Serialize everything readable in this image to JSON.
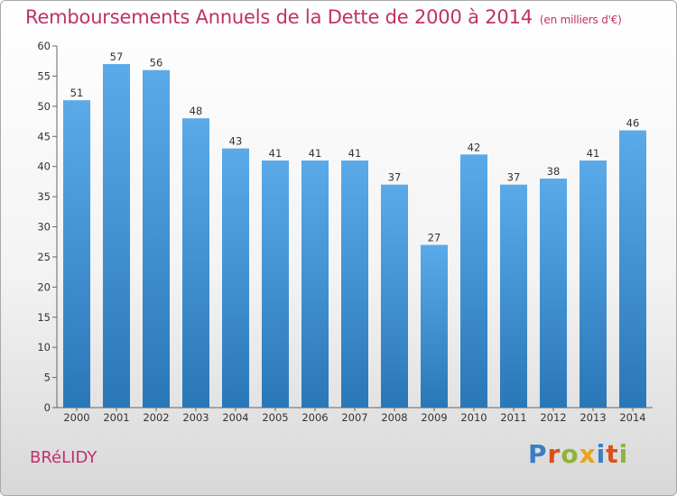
{
  "page": {
    "title": "Remboursements Annuels de la Dette de 2000 à 2014",
    "unit": "(en milliers d'€)",
    "commune": "BRéLIDY",
    "logo_text": "Proxiti",
    "logo_colors": [
      "#3a7ec4",
      "#d9501e",
      "#8fb339",
      "#e8a41a",
      "#3a7ec4",
      "#d9501e",
      "#8fb339"
    ]
  },
  "chart_data": {
    "type": "bar",
    "title": "Remboursements Annuels de la Dette de 2000 à 2014",
    "subtitle": "(en milliers d'€)",
    "xlabel": "",
    "ylabel": "",
    "categories": [
      "2000",
      "2001",
      "2002",
      "2003",
      "2004",
      "2005",
      "2006",
      "2007",
      "2008",
      "2009",
      "2010",
      "2011",
      "2012",
      "2013",
      "2014"
    ],
    "values": [
      51,
      57,
      56,
      48,
      43,
      41,
      41,
      41,
      37,
      27,
      42,
      37,
      38,
      41,
      46
    ],
    "ylim": [
      0,
      60
    ],
    "yticks": [
      0,
      5,
      10,
      15,
      20,
      25,
      30,
      35,
      40,
      45,
      50,
      55,
      60
    ],
    "grid": false,
    "bar_color_top": "#5aaae9",
    "bar_color_bottom": "#2a77b8"
  }
}
